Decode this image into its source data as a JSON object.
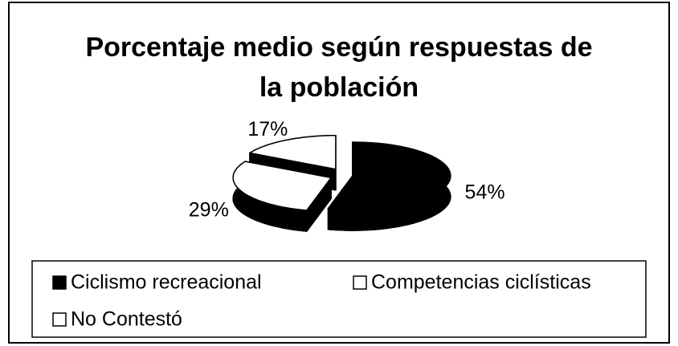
{
  "chart_data": {
    "type": "pie",
    "title": "Porcentaje medio según respuestas de la población",
    "categories": [
      "Ciclismo recreacional",
      "Competencias ciclísticas",
      "No Contestó"
    ],
    "values": [
      54,
      29,
      17
    ],
    "value_labels": [
      "54%",
      "29%",
      "17%"
    ],
    "colors": [
      "#000000",
      "#ffffff",
      "#ffffff"
    ],
    "legend": "bottom"
  }
}
